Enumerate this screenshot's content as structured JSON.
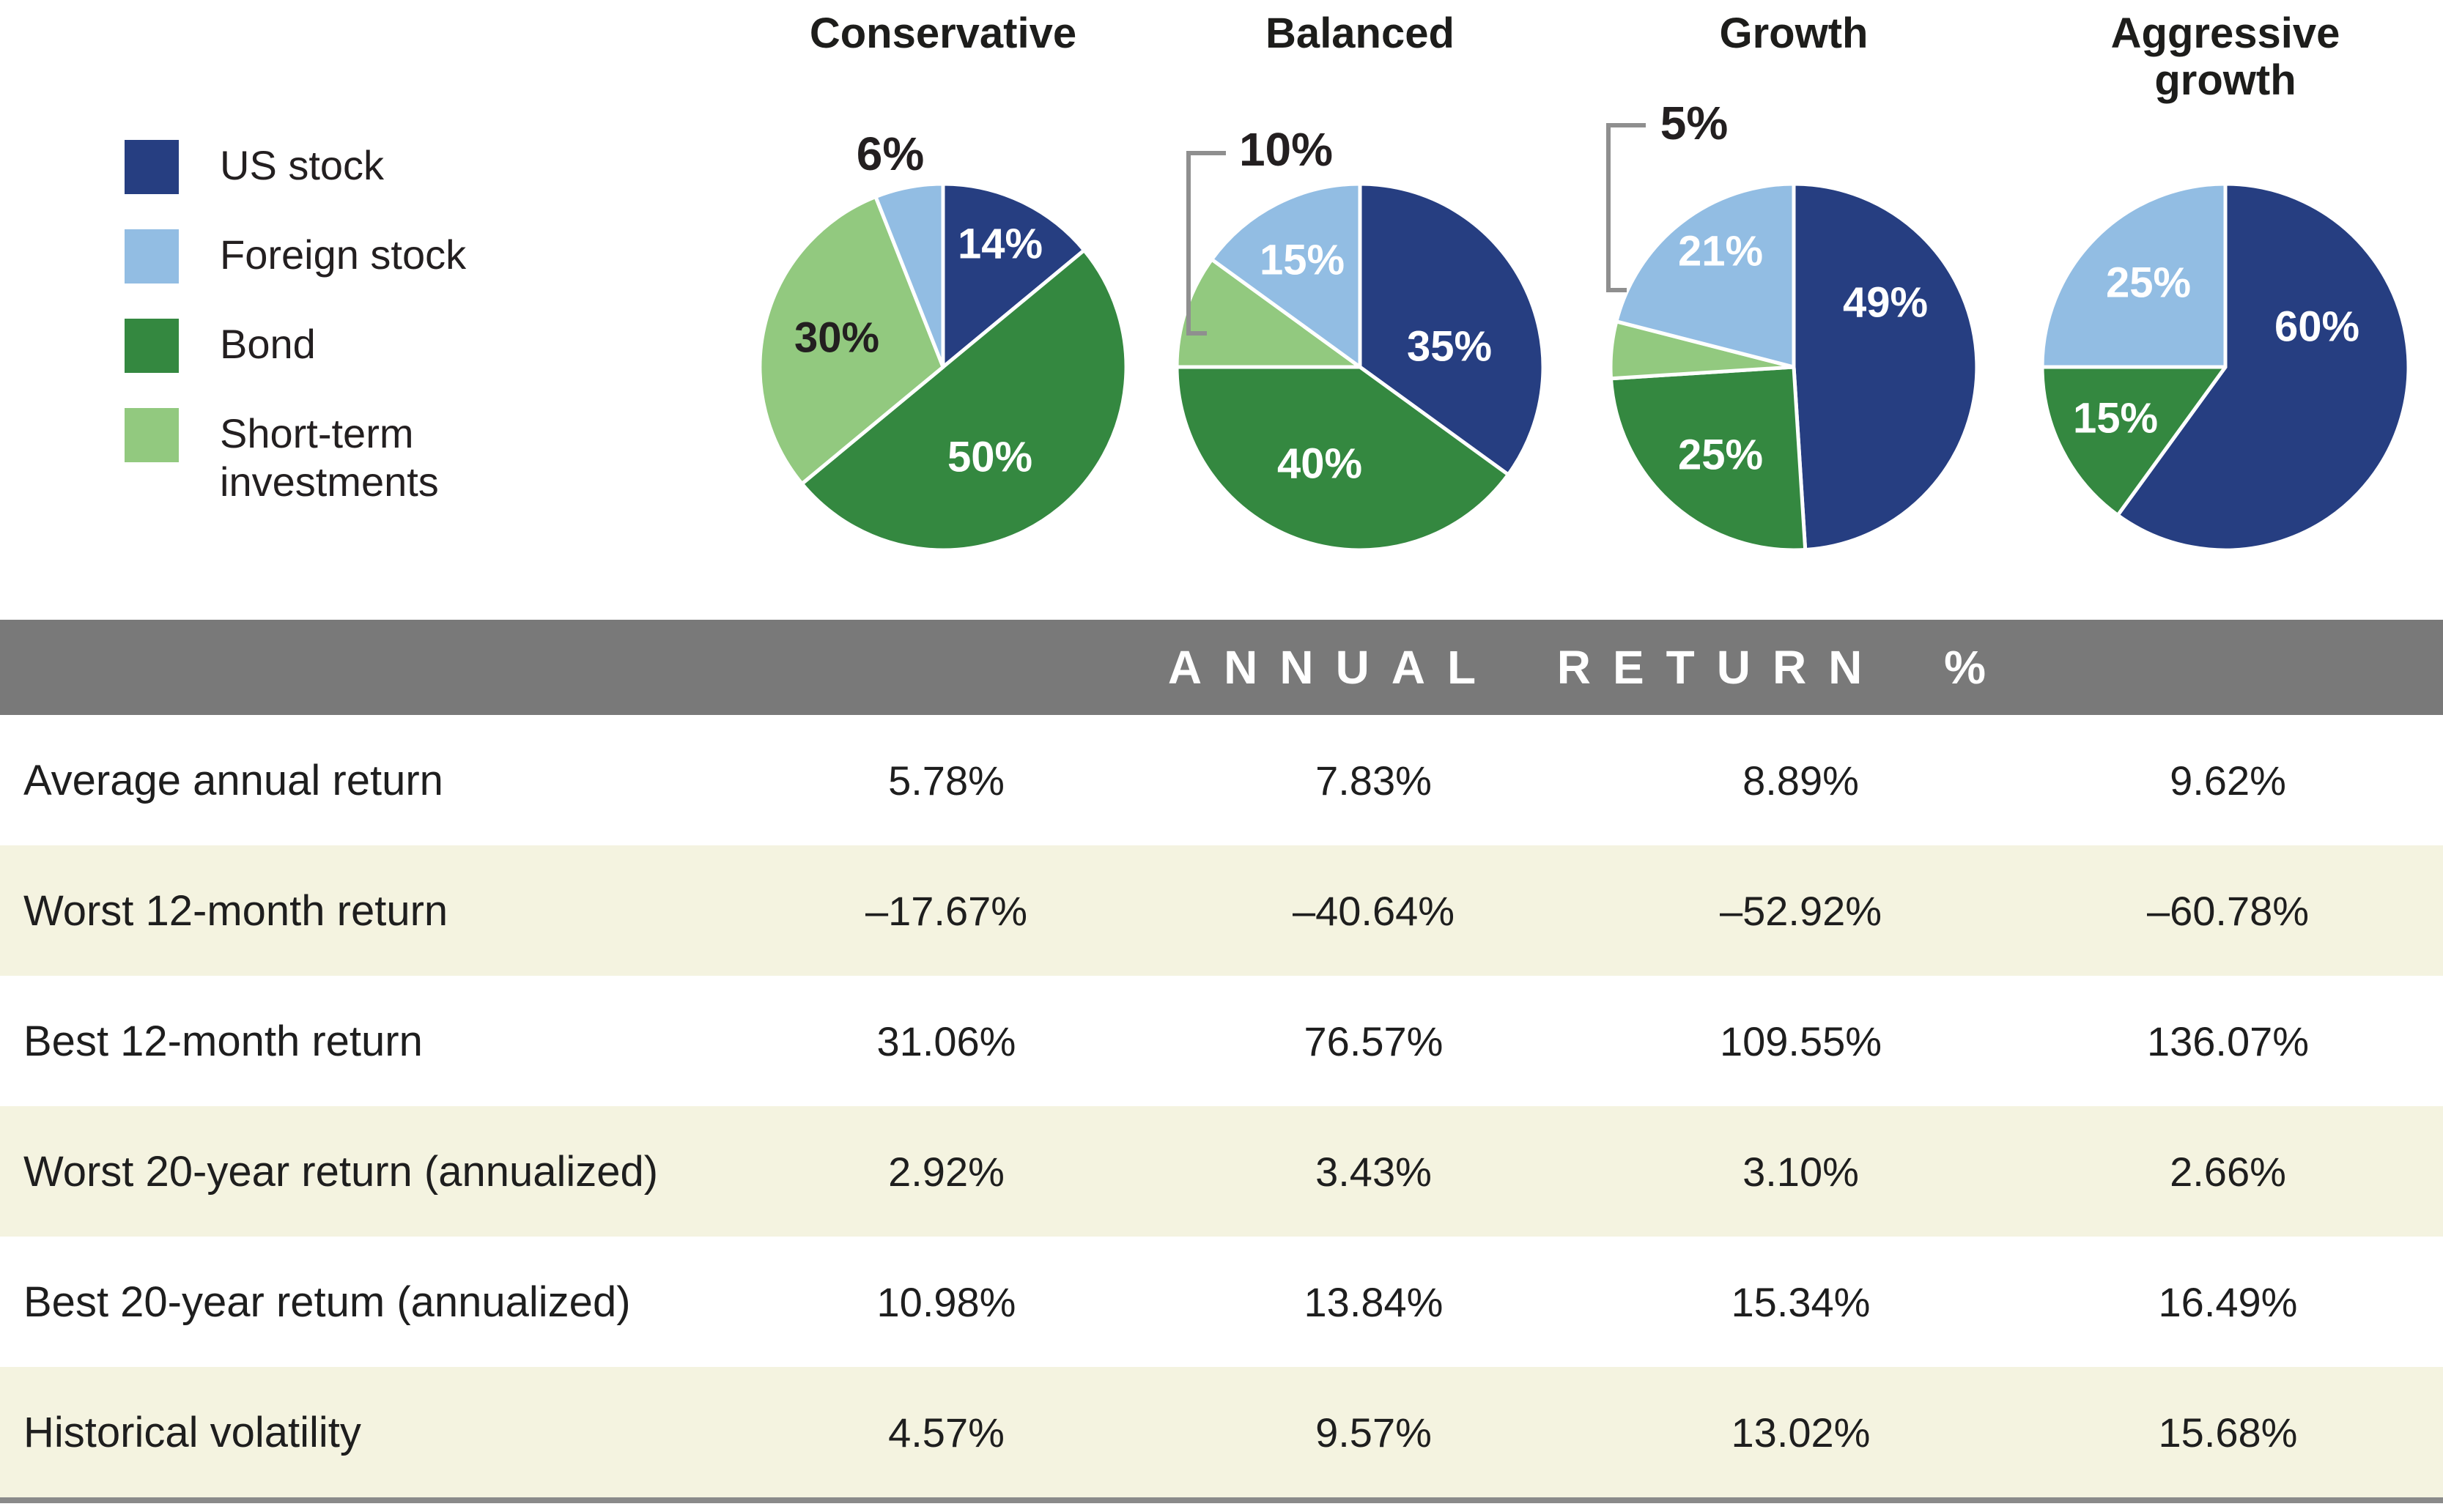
{
  "palette": {
    "us_stock": "#263e81",
    "foreign_stock": "#92bde3",
    "bond": "#348840",
    "short_term": "#92c97f",
    "header_bar": "#797979",
    "row_stripe": "#f4f3e0",
    "bottom_border": "#8a8a8a",
    "bracket": "#8f8f8f",
    "text_dark": "#231f20",
    "text_light": "#ffffff"
  },
  "legend": {
    "items": [
      {
        "label": "US stock",
        "color": "us_stock"
      },
      {
        "label": "Foreign stock",
        "color": "foreign_stock"
      },
      {
        "label": "Bond",
        "color": "bond"
      },
      {
        "label": "Short-term investments",
        "color": "short_term"
      }
    ]
  },
  "chart_data": [
    {
      "type": "pie",
      "title": "Conservative",
      "unit": "%",
      "start_angle": "12 o'clock, clockwise",
      "slices": [
        {
          "label": "US stock",
          "value": 14,
          "display": "14%",
          "color": "us_stock",
          "label_placement": "inside"
        },
        {
          "label": "Bond",
          "value": 50,
          "display": "50%",
          "color": "bond",
          "label_placement": "inside"
        },
        {
          "label": "Short-term investments",
          "value": 30,
          "display": "30%",
          "color": "short_term",
          "label_placement": "inside"
        },
        {
          "label": "Foreign stock",
          "value": 6,
          "display": "6%",
          "color": "foreign_stock",
          "label_placement": "outside"
        }
      ]
    },
    {
      "type": "pie",
      "title": "Balanced",
      "unit": "%",
      "start_angle": "12 o'clock, clockwise",
      "slices": [
        {
          "label": "US stock",
          "value": 35,
          "display": "35%",
          "color": "us_stock",
          "label_placement": "inside"
        },
        {
          "label": "Bond",
          "value": 40,
          "display": "40%",
          "color": "bond",
          "label_placement": "inside"
        },
        {
          "label": "Short-term investments",
          "value": 10,
          "display": "10%",
          "color": "short_term",
          "label_placement": "outside"
        },
        {
          "label": "Foreign stock",
          "value": 15,
          "display": "15%",
          "color": "foreign_stock",
          "label_placement": "inside"
        }
      ]
    },
    {
      "type": "pie",
      "title": "Growth",
      "unit": "%",
      "start_angle": "12 o'clock, clockwise",
      "slices": [
        {
          "label": "US stock",
          "value": 49,
          "display": "49%",
          "color": "us_stock",
          "label_placement": "inside"
        },
        {
          "label": "Bond",
          "value": 25,
          "display": "25%",
          "color": "bond",
          "label_placement": "inside"
        },
        {
          "label": "Short-term investments",
          "value": 5,
          "display": "5%",
          "color": "short_term",
          "label_placement": "outside"
        },
        {
          "label": "Foreign stock",
          "value": 21,
          "display": "21%",
          "color": "foreign_stock",
          "label_placement": "inside"
        }
      ]
    },
    {
      "type": "pie",
      "title": "Aggressive growth",
      "unit": "%",
      "start_angle": "12 o'clock, clockwise",
      "slices": [
        {
          "label": "US stock",
          "value": 60,
          "display": "60%",
          "color": "us_stock",
          "label_placement": "inside"
        },
        {
          "label": "Bond",
          "value": 15,
          "display": "15%",
          "color": "bond",
          "label_placement": "inside"
        },
        {
          "label": "Foreign stock",
          "value": 25,
          "display": "25%",
          "color": "foreign_stock",
          "label_placement": "inside"
        }
      ]
    },
    {
      "type": "table",
      "title": "ANNUAL RETURN %",
      "columns": [
        "Conservative",
        "Balanced",
        "Growth",
        "Aggressive growth"
      ],
      "rows": [
        {
          "label": "Average annual return",
          "values": [
            "5.78%",
            "7.83%",
            "8.89%",
            "9.62%"
          ]
        },
        {
          "label": "Worst 12-month return",
          "values": [
            "–17.67%",
            "–40.64%",
            "–52.92%",
            "–60.78%"
          ]
        },
        {
          "label": "Best 12-month return",
          "values": [
            "31.06%",
            "76.57%",
            "109.55%",
            "136.07%"
          ]
        },
        {
          "label": "Worst 20-year return (annualized)",
          "values": [
            "2.92%",
            "3.43%",
            "3.10%",
            "2.66%"
          ]
        },
        {
          "label": "Best 20-year retum (annualized)",
          "values": [
            "10.98%",
            "13.84%",
            "15.34%",
            "16.49%"
          ]
        },
        {
          "label": "Historical volatility",
          "values": [
            "4.57%",
            "9.57%",
            "13.02%",
            "15.68%"
          ]
        }
      ]
    }
  ]
}
